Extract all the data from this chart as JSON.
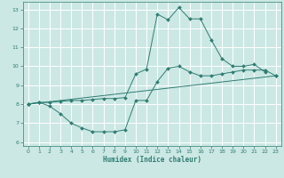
{
  "xlabel": "Humidex (Indice chaleur)",
  "xlim": [
    -0.5,
    23.5
  ],
  "ylim": [
    5.8,
    13.4
  ],
  "xticks": [
    0,
    1,
    2,
    3,
    4,
    5,
    6,
    7,
    8,
    9,
    10,
    11,
    12,
    13,
    14,
    15,
    16,
    17,
    18,
    19,
    20,
    21,
    22,
    23
  ],
  "yticks": [
    6,
    7,
    8,
    9,
    10,
    11,
    12,
    13
  ],
  "line_color": "#2e7d72",
  "bg_color": "#cce8e4",
  "grid_color": "#b0d8d4",
  "line1_x": [
    0,
    1,
    2,
    3,
    4,
    5,
    6,
    7,
    8,
    9,
    10,
    11,
    12,
    13,
    14,
    15,
    16,
    17,
    18,
    19,
    20,
    21,
    22,
    23
  ],
  "line1_y": [
    8.0,
    8.1,
    7.9,
    7.5,
    7.0,
    6.75,
    6.55,
    6.55,
    6.55,
    6.65,
    8.2,
    8.2,
    9.2,
    9.9,
    10.0,
    9.7,
    9.5,
    9.5,
    9.6,
    9.7,
    9.8,
    9.8,
    9.8,
    9.5
  ],
  "line2_x": [
    0,
    1,
    2,
    3,
    4,
    5,
    6,
    7,
    8,
    9,
    10,
    11,
    12,
    13,
    14,
    15,
    16,
    17,
    18,
    19,
    20,
    21,
    22
  ],
  "line2_y": [
    8.0,
    8.1,
    8.1,
    8.15,
    8.2,
    8.2,
    8.25,
    8.3,
    8.3,
    8.35,
    9.6,
    9.85,
    12.75,
    12.45,
    13.1,
    12.5,
    12.5,
    11.4,
    10.4,
    10.0,
    10.0,
    10.1,
    9.7
  ],
  "line3_x": [
    0,
    23
  ],
  "line3_y": [
    8.0,
    9.5
  ]
}
